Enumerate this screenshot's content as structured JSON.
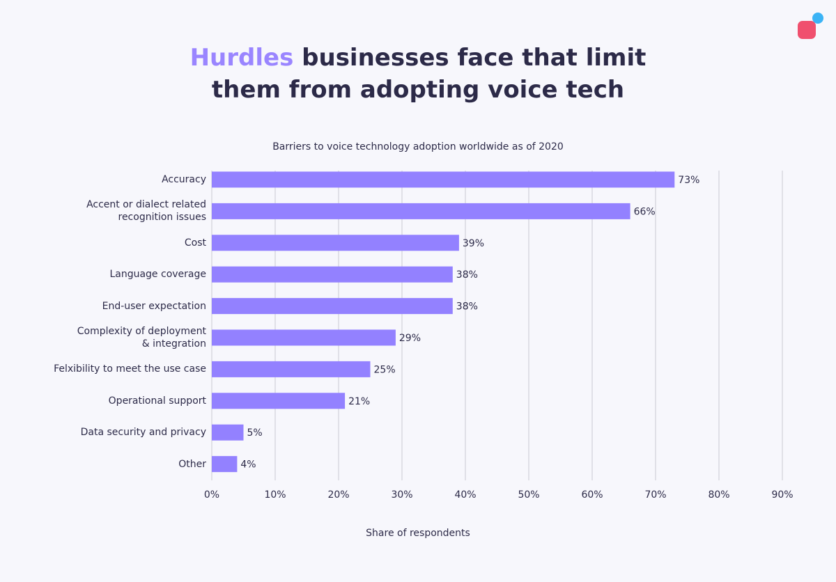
{
  "chart_data": {
    "type": "bar",
    "orientation": "horizontal",
    "title_highlight": "Hurdles",
    "title": "businesses face that limit\nthem from adopting voice tech",
    "subtitle": "Barriers to voice technology adoption worldwide as of 2020",
    "x_axis_label": "Share of respondents",
    "categories": [
      "Accuracy",
      "Accent or dialect related\nrecognition issues",
      "Cost",
      "Language coverage",
      "End-user expectation",
      "Complexity of deployment\n& integration",
      "Felxibility to meet the use case",
      "Operational support",
      "Data security and privacy",
      "Other"
    ],
    "values": [
      73,
      66,
      39,
      38,
      38,
      29,
      25,
      21,
      5,
      4
    ],
    "value_labels": [
      "73%",
      "66%",
      "39%",
      "38%",
      "38%",
      "29%",
      "25%",
      "21%",
      "5%",
      "4%"
    ],
    "color": "#9381ff",
    "xlim": [
      0,
      90
    ],
    "xticks": [
      {
        "value": 0,
        "label": "0%"
      },
      {
        "value": 10,
        "label": "10%"
      },
      {
        "value": 20,
        "label": "20%"
      },
      {
        "value": 30,
        "label": "30%"
      },
      {
        "value": 40,
        "label": "40%"
      },
      {
        "value": 50,
        "label": "50%"
      },
      {
        "value": 60,
        "label": "60%"
      },
      {
        "value": 70,
        "label": "70%"
      },
      {
        "value": 80,
        "label": "80%"
      },
      {
        "value": 90,
        "label": "90%"
      }
    ],
    "grid": true
  }
}
